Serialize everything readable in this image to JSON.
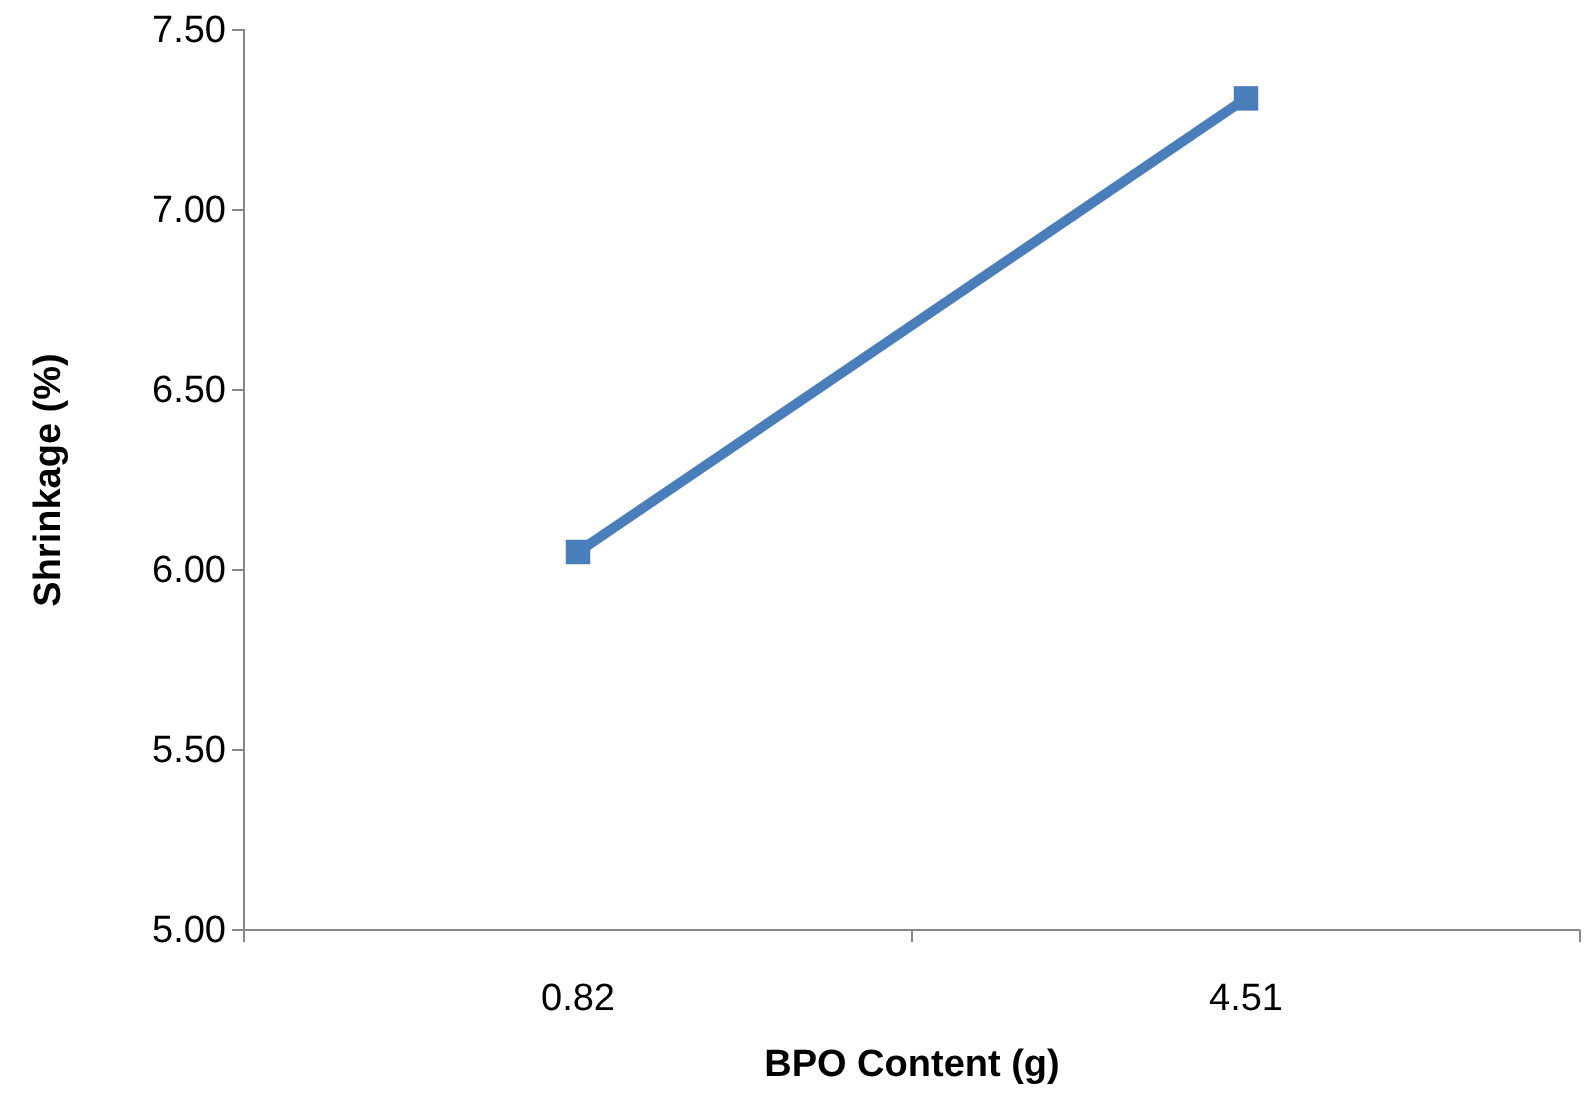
{
  "chart_data": {
    "type": "line",
    "xlabel": "BPO Content (g)",
    "ylabel": "Shrinkage (%)",
    "categories": [
      "0.82",
      "4.51"
    ],
    "series": [
      {
        "color": "#4a7ebb",
        "values": [
          6.05,
          7.31
        ]
      }
    ],
    "ylim": [
      5,
      7.5
    ],
    "yticks": [
      {
        "value": 5,
        "label": "5.00"
      },
      {
        "value": 5.5,
        "label": "5.50"
      },
      {
        "value": 6,
        "label": "6.00"
      },
      {
        "value": 6.5,
        "label": "6.50"
      },
      {
        "value": 7,
        "label": "7.00"
      },
      {
        "value": 7.5,
        "label": "7.50"
      }
    ],
    "marker": "square",
    "line_style": "solid",
    "grid": false
  }
}
